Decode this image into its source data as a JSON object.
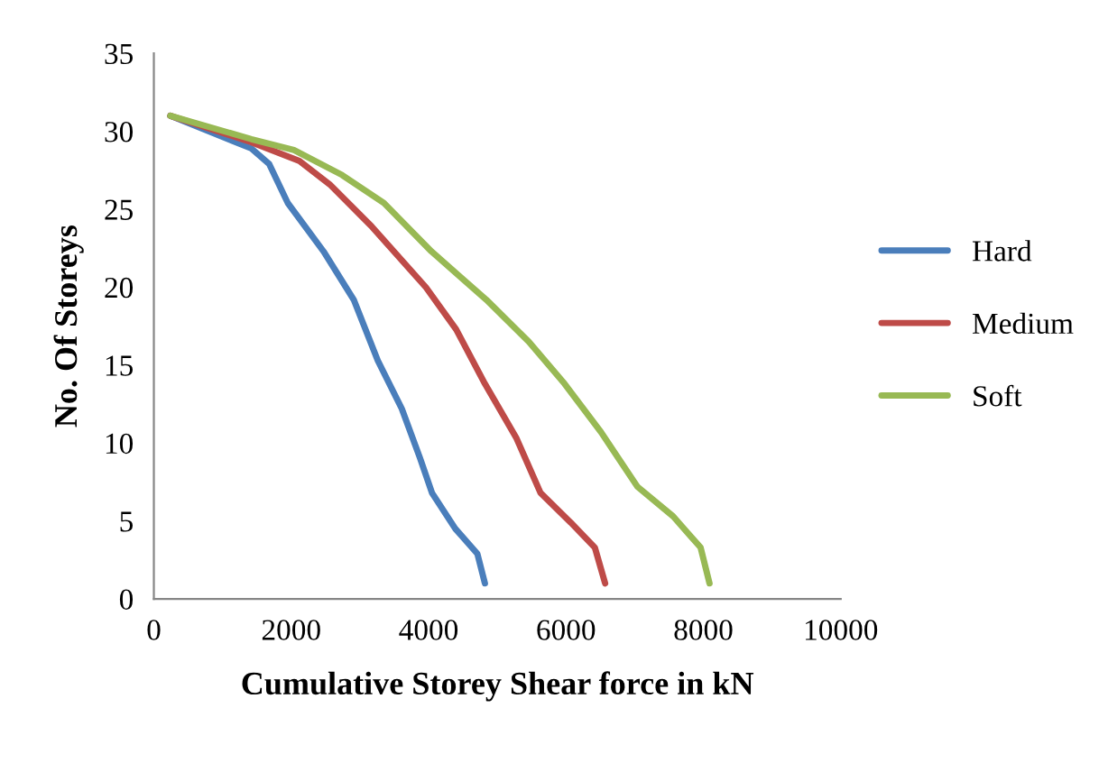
{
  "chart_data": {
    "type": "line",
    "xlabel": "Cumulative Storey Shear force in kN",
    "ylabel": "No. Of Storeys",
    "xlim": [
      0,
      10000
    ],
    "xticks": [
      0,
      2000,
      4000,
      6000,
      8000,
      10000
    ],
    "ylim": [
      0,
      35
    ],
    "yticks": [
      0,
      5,
      10,
      15,
      20,
      25,
      30,
      35
    ],
    "grid": false,
    "legend": "right",
    "marker": "none",
    "line_style": "solid",
    "series": [
      {
        "name": "Hard",
        "color": "#4a7ebb",
        "x": [
          240,
          1420,
          1680,
          1950,
          2470,
          2910,
          3260,
          3610,
          3870,
          4050,
          4390,
          4710,
          4820
        ],
        "values": [
          31,
          28.9,
          27.9,
          25.4,
          22.3,
          19.2,
          15.3,
          12.2,
          9.1,
          6.8,
          4.5,
          2.9,
          1
        ]
      },
      {
        "name": "Medium",
        "color": "#be4b48",
        "x": [
          240,
          1420,
          2120,
          2560,
          3170,
          3960,
          4400,
          4820,
          5280,
          5630,
          6070,
          6420,
          6570
        ],
        "values": [
          31,
          29.3,
          28.1,
          26.6,
          23.9,
          20,
          17.3,
          13.8,
          10.3,
          6.8,
          4.9,
          3.3,
          1
        ]
      },
      {
        "name": "Soft",
        "color": "#98b954",
        "x": [
          240,
          1420,
          2040,
          2740,
          3350,
          4040,
          4840,
          5460,
          5980,
          6510,
          7040,
          7560,
          7960,
          8090
        ],
        "values": [
          31,
          29.5,
          28.8,
          27.2,
          25.4,
          22.3,
          19.2,
          16.5,
          13.8,
          10.7,
          7.2,
          5.3,
          3.3,
          1
        ]
      }
    ]
  }
}
